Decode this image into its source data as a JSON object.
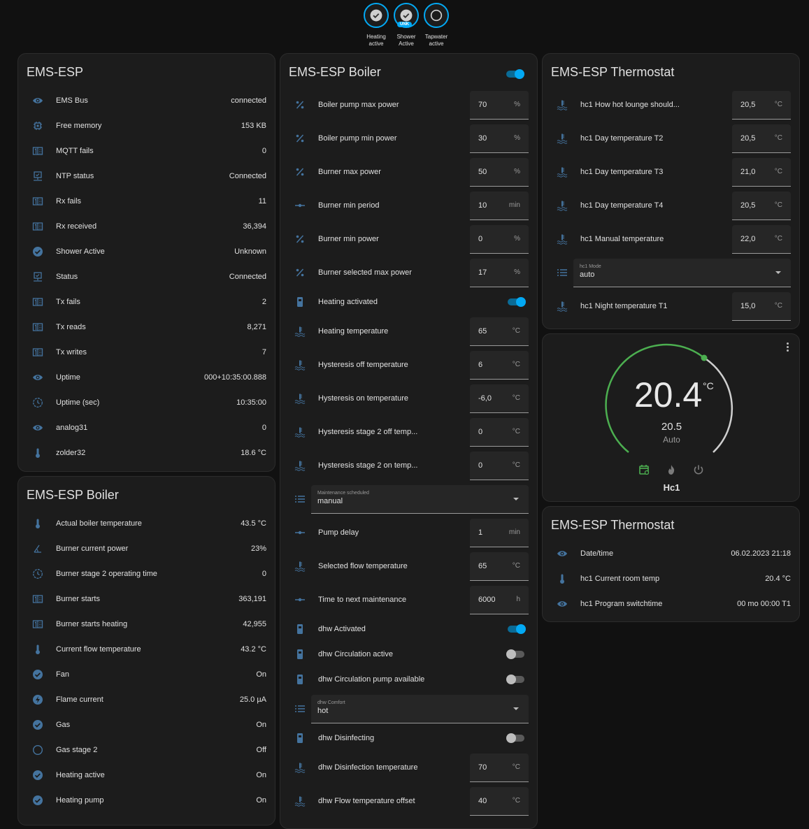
{
  "colors": {
    "icon": "#44739e",
    "accent": "#03a9f4",
    "heat_green": "#4caf50",
    "card": "#1c1c1c",
    "background": "#111111"
  },
  "badges": [
    {
      "label_1": "Heating",
      "label_2": "active",
      "state": "on",
      "icon": "check-circle-icon"
    },
    {
      "label_1": "Shower",
      "label_2": "Active",
      "state": "on",
      "icon": "check-circle-icon",
      "tag": "UNK"
    },
    {
      "label_1": "Tapwater",
      "label_2": "active",
      "state": "off",
      "icon": "circle-outline-icon"
    }
  ],
  "ems": {
    "title": "EMS-ESP",
    "rows": [
      {
        "icon": "eye",
        "label": "EMS Bus",
        "value": "connected"
      },
      {
        "icon": "chip",
        "label": "Free memory",
        "value": "153 KB"
      },
      {
        "icon": "counter",
        "label": "MQTT fails",
        "value": "0"
      },
      {
        "icon": "monitor",
        "label": "NTP status",
        "value": "Connected"
      },
      {
        "icon": "counter",
        "label": "Rx fails",
        "value": "11"
      },
      {
        "icon": "counter",
        "label": "Rx received",
        "value": "36,394"
      },
      {
        "icon": "check",
        "label": "Shower Active",
        "value": "Unknown"
      },
      {
        "icon": "monitor",
        "label": "Status",
        "value": "Connected"
      },
      {
        "icon": "counter",
        "label": "Tx fails",
        "value": "2"
      },
      {
        "icon": "counter",
        "label": "Tx reads",
        "value": "8,271"
      },
      {
        "icon": "counter",
        "label": "Tx writes",
        "value": "7"
      },
      {
        "icon": "eye",
        "label": "Uptime",
        "value": "000+10:35:00.888"
      },
      {
        "icon": "clock",
        "label": "Uptime (sec)",
        "value": "10:35:00"
      },
      {
        "icon": "eye",
        "label": "analog31",
        "value": "0"
      },
      {
        "icon": "thermometer",
        "label": "zolder32",
        "value": "18.6 °C"
      }
    ]
  },
  "boiler_sensors": {
    "title": "EMS-ESP Boiler",
    "rows": [
      {
        "icon": "thermometer",
        "label": "Actual boiler temperature",
        "value": "43.5 °C"
      },
      {
        "icon": "angle",
        "label": "Burner current power",
        "value": "23%"
      },
      {
        "icon": "clock",
        "label": "Burner stage 2 operating time",
        "value": "0"
      },
      {
        "icon": "counter",
        "label": "Burner starts",
        "value": "363,191"
      },
      {
        "icon": "counter",
        "label": "Burner starts heating",
        "value": "42,955"
      },
      {
        "icon": "thermometer",
        "label": "Current flow temperature",
        "value": "43.2 °C"
      },
      {
        "icon": "check",
        "label": "Fan",
        "value": "On"
      },
      {
        "icon": "flash",
        "label": "Flame current",
        "value": "25.0 µA"
      },
      {
        "icon": "check",
        "label": "Gas",
        "value": "On"
      },
      {
        "icon": "circle",
        "label": "Gas stage 2",
        "value": "Off"
      },
      {
        "icon": "check",
        "label": "Heating active",
        "value": "On"
      },
      {
        "icon": "check",
        "label": "Heating pump",
        "value": "On"
      }
    ]
  },
  "boiler_controls": {
    "title": "EMS-ESP Boiler",
    "header_toggle": true,
    "rows": [
      {
        "type": "number",
        "icon": "percent",
        "label": "Boiler pump max power",
        "value": "70",
        "unit": "%"
      },
      {
        "type": "number",
        "icon": "percent",
        "label": "Boiler pump min power",
        "value": "30",
        "unit": "%"
      },
      {
        "type": "number",
        "icon": "percent",
        "label": "Burner max power",
        "value": "50",
        "unit": "%"
      },
      {
        "type": "number",
        "icon": "slider",
        "label": "Burner min period",
        "value": "10",
        "unit": "min"
      },
      {
        "type": "number",
        "icon": "percent",
        "label": "Burner min power",
        "value": "0",
        "unit": "%"
      },
      {
        "type": "number",
        "icon": "percent",
        "label": "Burner selected max power",
        "value": "17",
        "unit": "%"
      },
      {
        "type": "toggle",
        "icon": "boiler",
        "label": "Heating activated",
        "on": true
      },
      {
        "type": "number",
        "icon": "water-thermo",
        "label": "Heating temperature",
        "value": "65",
        "unit": "°C"
      },
      {
        "type": "number",
        "icon": "water-thermo",
        "label": "Hysteresis off temperature",
        "value": "6",
        "unit": "°C"
      },
      {
        "type": "number",
        "icon": "water-thermo",
        "label": "Hysteresis on temperature",
        "value": "-6,0",
        "unit": "°C"
      },
      {
        "type": "number",
        "icon": "water-thermo",
        "label": "Hysteresis stage 2 off temp...",
        "value": "0",
        "unit": "°C"
      },
      {
        "type": "number",
        "icon": "water-thermo",
        "label": "Hysteresis stage 2 on temp...",
        "value": "0",
        "unit": "°C"
      },
      {
        "type": "select",
        "icon": "list",
        "label": "Maintenance scheduled",
        "value": "manual"
      },
      {
        "type": "number",
        "icon": "slider",
        "label": "Pump delay",
        "value": "1",
        "unit": "min"
      },
      {
        "type": "number",
        "icon": "water-thermo",
        "label": "Selected flow temperature",
        "value": "65",
        "unit": "°C"
      },
      {
        "type": "number",
        "icon": "slider",
        "label": "Time to next maintenance",
        "value": "6000",
        "unit": "h"
      },
      {
        "type": "toggle",
        "icon": "boiler",
        "label": "dhw Activated",
        "on": true
      },
      {
        "type": "toggle",
        "icon": "boiler",
        "label": "dhw Circulation active",
        "on": false
      },
      {
        "type": "toggle",
        "icon": "boiler",
        "label": "dhw Circulation pump available",
        "on": false
      },
      {
        "type": "select",
        "icon": "list",
        "label": "dhw Comfort",
        "value": "hot"
      },
      {
        "type": "toggle",
        "icon": "boiler",
        "label": "dhw Disinfecting",
        "on": false
      },
      {
        "type": "number",
        "icon": "water-thermo",
        "label": "dhw Disinfection temperature",
        "value": "70",
        "unit": "°C"
      },
      {
        "type": "number",
        "icon": "water-thermo",
        "label": "dhw Flow temperature offset",
        "value": "40",
        "unit": "°C"
      }
    ]
  },
  "thermo_controls": {
    "title": "EMS-ESP Thermostat",
    "rows": [
      {
        "type": "number",
        "icon": "water-thermo",
        "label": "hc1 How hot lounge should...",
        "value": "20,5",
        "unit": "°C"
      },
      {
        "type": "number",
        "icon": "water-thermo",
        "label": "hc1 Day temperature T2",
        "value": "20,5",
        "unit": "°C"
      },
      {
        "type": "number",
        "icon": "water-thermo",
        "label": "hc1 Day temperature T3",
        "value": "21,0",
        "unit": "°C"
      },
      {
        "type": "number",
        "icon": "water-thermo",
        "label": "hc1 Day temperature T4",
        "value": "20,5",
        "unit": "°C"
      },
      {
        "type": "number",
        "icon": "water-thermo",
        "label": "hc1 Manual temperature",
        "value": "22,0",
        "unit": "°C"
      },
      {
        "type": "select",
        "icon": "list",
        "label": "hc1 Mode",
        "value": "auto"
      },
      {
        "type": "number",
        "icon": "water-thermo",
        "label": "hc1 Night temperature T1",
        "value": "15,0",
        "unit": "°C"
      }
    ]
  },
  "dial": {
    "current": "20.4",
    "unit": "°C",
    "target": "20.5",
    "mode": "Auto",
    "name": "Hc1",
    "modes": [
      "auto-schedule-icon",
      "heat-flame-icon",
      "power-off-icon"
    ],
    "active_mode": "auto-schedule-icon"
  },
  "thermo_sensors": {
    "title": "EMS-ESP Thermostat",
    "rows": [
      {
        "icon": "eye",
        "label": "Date/time",
        "value": "06.02.2023 21:18"
      },
      {
        "icon": "thermometer",
        "label": "hc1 Current room temp",
        "value": "20.4 °C"
      },
      {
        "icon": "eye",
        "label": "hc1 Program switchtime",
        "value": "00 mo 00:00 T1"
      }
    ]
  }
}
